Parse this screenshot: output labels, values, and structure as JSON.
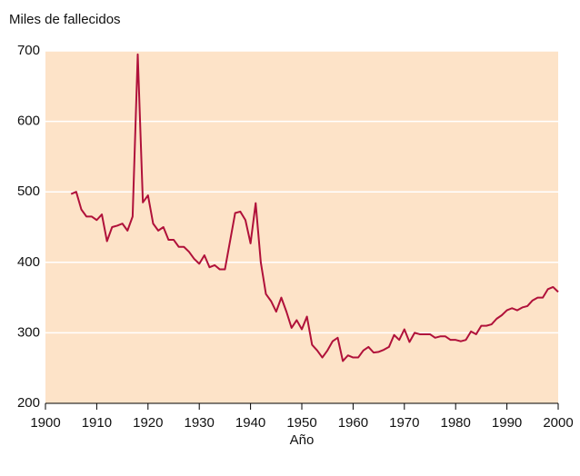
{
  "chart_data": {
    "type": "line",
    "y_label": "Miles de fallecidos",
    "x_label": "Año",
    "x": [
      1905,
      1906,
      1907,
      1908,
      1909,
      1910,
      1911,
      1912,
      1913,
      1914,
      1915,
      1916,
      1917,
      1918,
      1919,
      1920,
      1921,
      1922,
      1923,
      1924,
      1925,
      1926,
      1927,
      1928,
      1929,
      1930,
      1931,
      1932,
      1933,
      1934,
      1935,
      1936,
      1937,
      1938,
      1939,
      1940,
      1941,
      1942,
      1943,
      1944,
      1945,
      1946,
      1947,
      1948,
      1949,
      1950,
      1951,
      1952,
      1953,
      1954,
      1955,
      1956,
      1957,
      1958,
      1959,
      1960,
      1961,
      1962,
      1963,
      1964,
      1965,
      1966,
      1967,
      1968,
      1969,
      1970,
      1971,
      1972,
      1973,
      1974,
      1975,
      1976,
      1977,
      1978,
      1979,
      1980,
      1981,
      1982,
      1983,
      1984,
      1985,
      1986,
      1987,
      1988,
      1989,
      1990,
      1991,
      1992,
      1993,
      1994,
      1995,
      1996,
      1997,
      1998,
      1999,
      2000
    ],
    "values": [
      497,
      500,
      475,
      465,
      465,
      460,
      468,
      430,
      450,
      452,
      455,
      445,
      465,
      695,
      485,
      495,
      455,
      445,
      450,
      432,
      432,
      422,
      422,
      415,
      405,
      398,
      410,
      393,
      396,
      390,
      390,
      430,
      470,
      472,
      460,
      427,
      484,
      400,
      355,
      345,
      330,
      350,
      330,
      307,
      318,
      305,
      323,
      283,
      275,
      265,
      275,
      288,
      293,
      260,
      268,
      265,
      265,
      275,
      280,
      272,
      273,
      276,
      280,
      297,
      290,
      305,
      287,
      300,
      298,
      298,
      298,
      293,
      295,
      295,
      290,
      290,
      288,
      290,
      302,
      298,
      310,
      310,
      312,
      320,
      325,
      332,
      335,
      332,
      336,
      338,
      346,
      350,
      350,
      362,
      365,
      358
    ],
    "color": "#b0113a",
    "xlim": [
      1900,
      2000
    ],
    "xticks": [
      1900,
      1910,
      1920,
      1930,
      1940,
      1950,
      1960,
      1970,
      1980,
      1990,
      2000
    ],
    "ylim": [
      200,
      700
    ],
    "yticks": [
      200,
      300,
      400,
      500,
      600,
      700
    ],
    "grid": true
  }
}
